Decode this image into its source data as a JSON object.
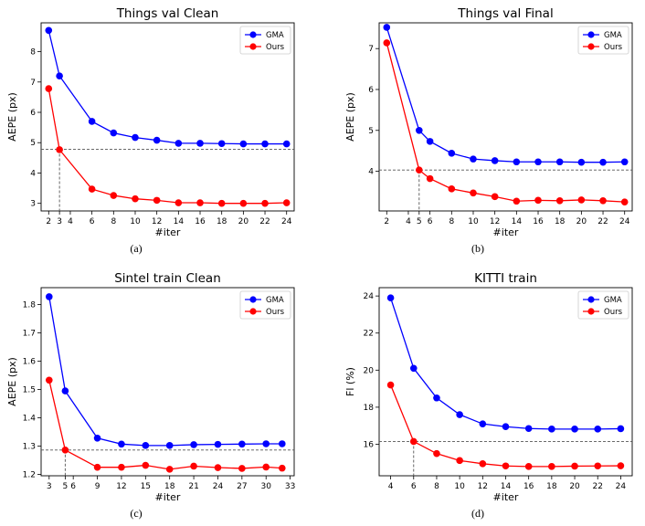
{
  "colors": {
    "gma": "#0000ff",
    "ours": "#ff0000",
    "ref": "#555555",
    "axis": "#000000"
  },
  "chart_data": [
    {
      "type": "line",
      "title": "Things val Clean",
      "xlabel": "#iter",
      "ylabel": "AEPE (px)",
      "xlim": [
        1.3,
        24.7
      ],
      "ylim": [
        2.75,
        8.95
      ],
      "xticks": [
        2,
        3,
        4,
        6,
        8,
        10,
        12,
        14,
        16,
        18,
        20,
        22,
        24
      ],
      "yticks": [
        3,
        4,
        5,
        6,
        7,
        8
      ],
      "legend": "top-right",
      "ref_point": [
        3,
        4.78
      ],
      "caption": "(a)",
      "series": [
        {
          "name": "GMA",
          "x": [
            2,
            3,
            6,
            8,
            10,
            12,
            14,
            16,
            18,
            20,
            22,
            24
          ],
          "values": [
            8.7,
            7.2,
            5.7,
            5.32,
            5.17,
            5.08,
            4.98,
            4.98,
            4.97,
            4.96,
            4.96,
            4.96
          ]
        },
        {
          "name": "Ours",
          "x": [
            2,
            3,
            6,
            8,
            10,
            12,
            14,
            16,
            18,
            20,
            22,
            24
          ],
          "values": [
            6.78,
            4.77,
            3.47,
            3.26,
            3.15,
            3.1,
            3.02,
            3.02,
            3.0,
            3.0,
            3.0,
            3.02
          ]
        }
      ]
    },
    {
      "type": "line",
      "title": "Things val Final",
      "xlabel": "#iter",
      "ylabel": "AEPE (px)",
      "xlim": [
        1.3,
        24.7
      ],
      "ylim": [
        3.03,
        7.63
      ],
      "xticks": [
        2,
        4,
        5,
        6,
        8,
        10,
        12,
        14,
        16,
        18,
        20,
        22,
        24
      ],
      "yticks": [
        4,
        5,
        6,
        7
      ],
      "legend": "top-right",
      "ref_point": [
        5,
        4.03
      ],
      "caption": "(b)",
      "series": [
        {
          "name": "GMA",
          "x": [
            2,
            5,
            6,
            8,
            10,
            12,
            14,
            16,
            18,
            20,
            22,
            24
          ],
          "values": [
            7.52,
            5.0,
            4.73,
            4.44,
            4.3,
            4.26,
            4.23,
            4.23,
            4.23,
            4.22,
            4.22,
            4.23
          ]
        },
        {
          "name": "Ours",
          "x": [
            2,
            5,
            6,
            8,
            10,
            12,
            14,
            16,
            18,
            20,
            22,
            24
          ],
          "values": [
            7.14,
            4.03,
            3.82,
            3.57,
            3.47,
            3.38,
            3.27,
            3.29,
            3.28,
            3.3,
            3.28,
            3.25
          ]
        }
      ]
    },
    {
      "type": "line",
      "title": "Sintel train Clean",
      "xlabel": "#iter",
      "ylabel": "AEPE (px)",
      "xlim": [
        2.0,
        33.5
      ],
      "ylim": [
        1.195,
        1.86
      ],
      "xticks": [
        3,
        5,
        6,
        9,
        12,
        15,
        18,
        21,
        24,
        27,
        30,
        33
      ],
      "yticks": [
        1.2,
        1.3,
        1.4,
        1.5,
        1.6,
        1.7,
        1.8
      ],
      "legend": "top-right",
      "ref_point": [
        5,
        1.286
      ],
      "caption": "(c)",
      "series": [
        {
          "name": "GMA",
          "x": [
            3,
            5,
            9,
            12,
            15,
            18,
            21,
            24,
            27,
            30,
            32
          ],
          "values": [
            1.828,
            1.495,
            1.328,
            1.307,
            1.302,
            1.302,
            1.305,
            1.306,
            1.307,
            1.308,
            1.308
          ]
        },
        {
          "name": "Ours",
          "x": [
            3,
            5,
            9,
            12,
            15,
            18,
            21,
            24,
            27,
            30,
            32
          ],
          "values": [
            1.533,
            1.286,
            1.225,
            1.225,
            1.232,
            1.218,
            1.229,
            1.224,
            1.221,
            1.226,
            1.222
          ]
        }
      ]
    },
    {
      "type": "line",
      "title": "KITTI train",
      "xlabel": "#iter",
      "ylabel": "Fl (%)",
      "xlim": [
        3.0,
        25.0
      ],
      "ylim": [
        14.3,
        24.45
      ],
      "xticks": [
        4,
        6,
        8,
        10,
        12,
        14,
        16,
        18,
        20,
        22,
        24
      ],
      "yticks": [
        16,
        18,
        20,
        22,
        24
      ],
      "legend": "top-right",
      "ref_point": [
        6,
        16.15
      ],
      "caption": "(d)",
      "series": [
        {
          "name": "GMA",
          "x": [
            4,
            6,
            8,
            10,
            12,
            14,
            16,
            18,
            20,
            22,
            24
          ],
          "values": [
            23.9,
            20.1,
            18.5,
            17.6,
            17.1,
            16.95,
            16.85,
            16.82,
            16.82,
            16.82,
            16.84
          ]
        },
        {
          "name": "Ours",
          "x": [
            4,
            6,
            8,
            10,
            12,
            14,
            16,
            18,
            20,
            22,
            24
          ],
          "values": [
            19.2,
            16.15,
            15.5,
            15.12,
            14.95,
            14.83,
            14.8,
            14.8,
            14.82,
            14.83,
            14.84
          ]
        }
      ]
    }
  ]
}
